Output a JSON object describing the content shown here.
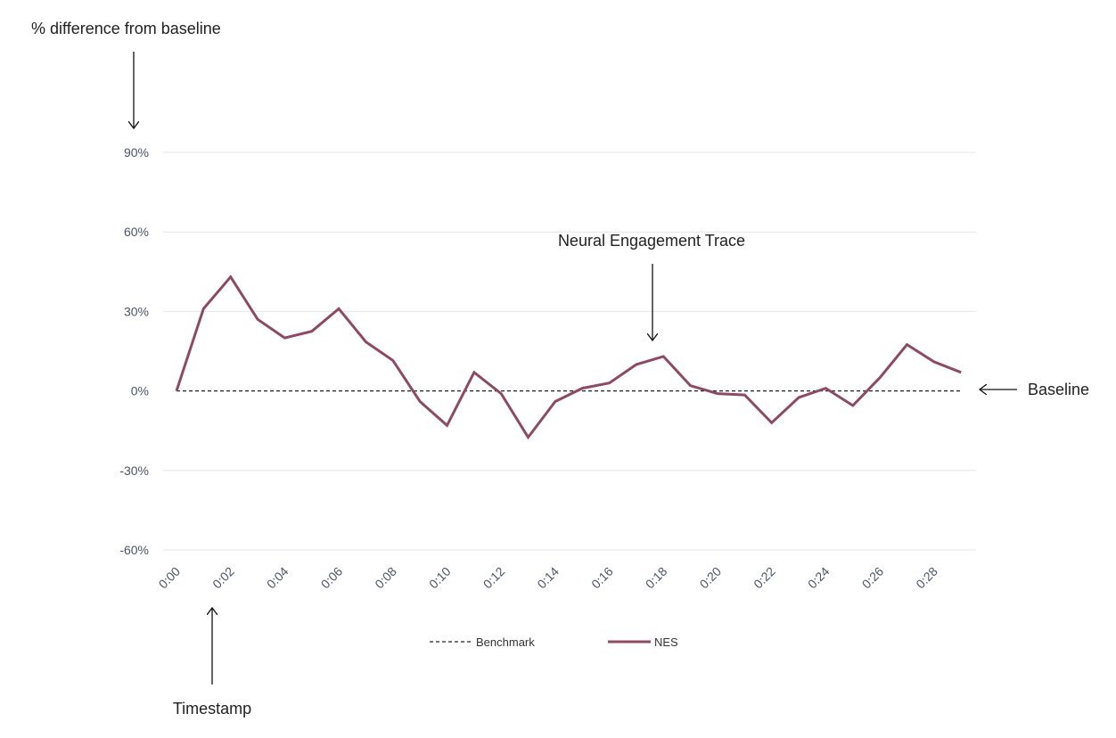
{
  "chart_data": {
    "type": "line",
    "title": "",
    "xlabel": "Timestamp",
    "ylabel": "% difference from baseline",
    "ylim": [
      -60,
      90
    ],
    "y_ticks": [
      "90%",
      "60%",
      "30%",
      "0%",
      "-30%",
      "-60%"
    ],
    "y_tick_values": [
      90,
      60,
      30,
      0,
      -30,
      -60
    ],
    "x": [
      "0:00",
      "0:01",
      "0:02",
      "0:03",
      "0:04",
      "0:05",
      "0:06",
      "0:07",
      "0:08",
      "0:09",
      "0:10",
      "0:11",
      "0:12",
      "0:13",
      "0:14",
      "0:15",
      "0:16",
      "0:17",
      "0:18",
      "0:19",
      "0:20",
      "0:21",
      "0:22",
      "0:23",
      "0:24",
      "0:25",
      "0:26",
      "0:27",
      "0:28",
      "0:29"
    ],
    "x_tick_labels": [
      "0:00",
      "0:02",
      "0:04",
      "0:06",
      "0:08",
      "0:10",
      "0:12",
      "0:14",
      "0:16",
      "0:18",
      "0:20",
      "0:22",
      "0:24",
      "0:26",
      "0:28"
    ],
    "grid": true,
    "legend_position": "bottom",
    "series": [
      {
        "name": "Benchmark",
        "style": "dashed",
        "color": "#222222",
        "values": [
          0,
          0,
          0,
          0,
          0,
          0,
          0,
          0,
          0,
          0,
          0,
          0,
          0,
          0,
          0,
          0,
          0,
          0,
          0,
          0,
          0,
          0,
          0,
          0,
          0,
          0,
          0,
          0,
          0,
          0
        ]
      },
      {
        "name": "NES",
        "style": "solid",
        "color": "#8e4a65",
        "values": [
          0,
          31,
          43,
          27,
          20,
          22.5,
          31,
          18.5,
          11.5,
          -4,
          -13,
          7,
          -1,
          -17.5,
          -4,
          1,
          3,
          10,
          13,
          2,
          -1,
          -1.5,
          -12,
          -2.5,
          1,
          -5.5,
          5,
          17.5,
          11,
          7
        ]
      }
    ],
    "annotations": {
      "y_axis": "% difference from baseline",
      "trace": "Neural Engagement Trace",
      "baseline": "Baseline",
      "x_axis": "Timestamp"
    },
    "legend": {
      "benchmark_label": "Benchmark",
      "nes_label": "NES"
    }
  }
}
